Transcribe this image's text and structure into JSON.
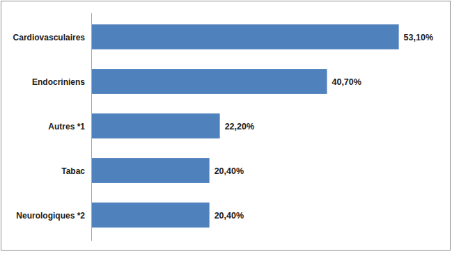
{
  "chart_data": {
    "type": "bar",
    "orientation": "horizontal",
    "categories": [
      "Cardiovasculaires",
      "Endocriniens",
      "Autres *1",
      "Tabac",
      "Neurologiques *2"
    ],
    "values": [
      53.1,
      40.7,
      22.2,
      20.4,
      20.4
    ],
    "value_labels": [
      "53,10%",
      "40,70%",
      "22,20%",
      "20,40%",
      "20,40%"
    ],
    "color": "#4f81bd",
    "xlim": [
      0,
      60
    ],
    "data_labels": true,
    "tick_labels": "y",
    "grid": false
  }
}
